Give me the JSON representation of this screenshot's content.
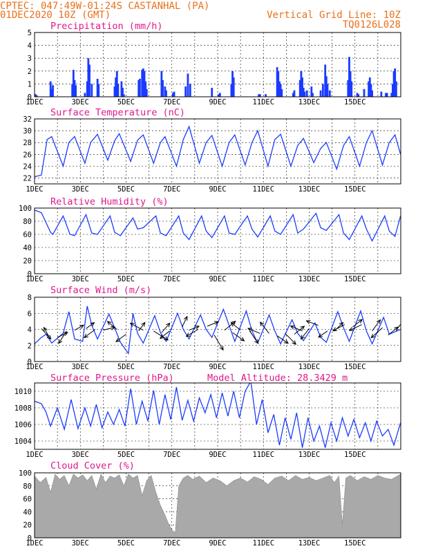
{
  "header": {
    "line1": "CPTEC:   047:49W-01:24S   CASTANHAL (PA)",
    "line2": "01DEC2020 10Z (GMT)",
    "grid_note": "Vertical Grid Line: 10Z",
    "run_code": "TQ0126L028"
  },
  "colors": {
    "header": "#e8701a",
    "title": "#e0178c",
    "series": "#1a3bff",
    "cloud": "#a9a9a9"
  },
  "chart_data": [
    {
      "type": "bar",
      "title": "Precipitation (mm/h)",
      "ylim": [
        0,
        5
      ],
      "yticks": [
        "0",
        "1",
        "2",
        "3",
        "4",
        "5"
      ],
      "xlabels": [
        "1DEC",
        "3DEC",
        "5DEC",
        "7DEC",
        "9DEC",
        "11DEC",
        "13DEC",
        "15DEC"
      ],
      "x_unit": "day index (0 = 01DEC 10Z)",
      "x": [
        0.05,
        0.1,
        0.7,
        0.75,
        0.8,
        1.65,
        1.7,
        1.75,
        1.8,
        2.2,
        2.3,
        2.35,
        2.4,
        2.5,
        2.75,
        2.8,
        3.5,
        3.55,
        3.6,
        3.65,
        3.8,
        3.85,
        3.9,
        4.55,
        4.6,
        4.7,
        4.75,
        4.8,
        4.85,
        4.9,
        5.55,
        5.6,
        5.7,
        5.75,
        6.05,
        6.1,
        6.6,
        6.7,
        6.8,
        7.75,
        8.05,
        8.1,
        8.6,
        8.65,
        8.7,
        9.8,
        9.85,
        10.1,
        10.6,
        10.65,
        10.7,
        10.75,
        10.8,
        11.3,
        11.35,
        11.6,
        11.65,
        11.7,
        11.75,
        11.8,
        11.9,
        12.1,
        12.15,
        12.5,
        12.6,
        12.7,
        12.75,
        12.8,
        12.9,
        13.7,
        13.75,
        13.8,
        13.85,
        14.1,
        14.15,
        14.4,
        14.6,
        14.65,
        14.7,
        14.75,
        15.15,
        15.35,
        15.4,
        15.6,
        15.65,
        15.7,
        15.75,
        15.8
      ],
      "values": [
        0.2,
        0.1,
        1.2,
        0.6,
        0.9,
        1.0,
        2.1,
        1.3,
        0.9,
        0.3,
        1.2,
        3.0,
        2.5,
        1.0,
        1.4,
        1.0,
        0.8,
        1.5,
        2.0,
        1.0,
        1.2,
        0.7,
        0.2,
        1.3,
        1.4,
        2.1,
        2.2,
        2.0,
        1.2,
        0.6,
        2.0,
        1.3,
        0.8,
        0.5,
        0.3,
        0.4,
        0.8,
        1.8,
        1.0,
        0.7,
        0.2,
        0.3,
        1.0,
        2.0,
        1.5,
        0.2,
        0.2,
        0.2,
        2.3,
        2.0,
        1.2,
        1.0,
        0.6,
        0.3,
        0.5,
        1.3,
        2.0,
        1.5,
        0.7,
        0.4,
        0.5,
        0.8,
        0.3,
        0.5,
        1.0,
        2.5,
        1.6,
        1.0,
        0.5,
        1.3,
        3.1,
        2.0,
        1.2,
        0.3,
        0.2,
        0.6,
        1.2,
        1.5,
        1.0,
        0.5,
        0.4,
        0.3,
        0.3,
        0.3,
        1.0,
        2.0,
        2.2,
        1.2
      ]
    },
    {
      "type": "line",
      "title": "Surface Temperature (nC)",
      "ylim": [
        21,
        32
      ],
      "yticks": [
        "22",
        "24",
        "26",
        "28",
        "30",
        "32"
      ],
      "xlabels": [
        "1DEC",
        "3DEC",
        "5DEC",
        "7DEC",
        "9DEC",
        "11DEC",
        "13DEC",
        "15DEC"
      ],
      "x": [
        0,
        0.3,
        0.55,
        0.75,
        1.25,
        1.5,
        1.75,
        2.2,
        2.45,
        2.75,
        3.2,
        3.5,
        3.7,
        4.2,
        4.5,
        4.75,
        5.2,
        5.5,
        5.7,
        6.2,
        6.5,
        6.75,
        7.2,
        7.5,
        7.75,
        8.2,
        8.5,
        8.75,
        9.2,
        9.5,
        9.75,
        10.2,
        10.5,
        10.75,
        11.2,
        11.5,
        11.75,
        12.2,
        12.5,
        12.75,
        13.2,
        13.5,
        13.75,
        14.2,
        14.5,
        14.75,
        15.2,
        15.5,
        15.75,
        15.99
      ],
      "values": [
        22.2,
        22.5,
        28.5,
        29.0,
        24.0,
        28.0,
        29.0,
        24.5,
        28.0,
        29.4,
        25.0,
        28.3,
        29.5,
        24.8,
        28.4,
        29.3,
        24.5,
        28.0,
        29.0,
        24.0,
        28.5,
        30.7,
        24.5,
        28.0,
        29.2,
        24.0,
        28.0,
        29.3,
        24.2,
        28.0,
        30.0,
        24.0,
        28.5,
        29.4,
        24.0,
        27.5,
        28.7,
        24.6,
        27.0,
        28.0,
        23.5,
        27.5,
        29.0,
        24.0,
        28.0,
        30.0,
        24.2,
        28.0,
        29.3,
        26.0
      ]
    },
    {
      "type": "line",
      "title": "Relative Humidity (%)",
      "ylim": [
        0,
        100
      ],
      "yticks": [
        "0",
        "20",
        "40",
        "60",
        "80",
        "100"
      ],
      "xlabels": [
        "1DEC",
        "3DEC",
        "5DEC",
        "7DEC",
        "9DEC",
        "11DEC",
        "13DEC",
        "15DEC"
      ],
      "x": [
        0,
        0.3,
        0.7,
        0.8,
        1.25,
        1.55,
        1.75,
        2.25,
        2.5,
        2.75,
        3.3,
        3.5,
        3.75,
        4.3,
        4.5,
        4.75,
        5.3,
        5.5,
        5.75,
        6.3,
        6.5,
        6.75,
        7.3,
        7.5,
        7.75,
        8.3,
        8.5,
        8.75,
        9.3,
        9.5,
        9.75,
        10.3,
        10.5,
        10.75,
        11.3,
        11.5,
        11.75,
        12.3,
        12.5,
        12.75,
        13.3,
        13.5,
        13.75,
        14.3,
        14.5,
        14.75,
        15.3,
        15.5,
        15.75,
        15.99
      ],
      "values": [
        97,
        93,
        63,
        60,
        88,
        60,
        58,
        90,
        62,
        60,
        88,
        63,
        58,
        85,
        68,
        70,
        88,
        62,
        58,
        88,
        62,
        52,
        88,
        65,
        55,
        88,
        62,
        60,
        88,
        68,
        56,
        88,
        65,
        60,
        90,
        62,
        68,
        92,
        70,
        66,
        90,
        62,
        52,
        88,
        68,
        50,
        88,
        65,
        57,
        88
      ]
    },
    {
      "type": "line",
      "title": "Surface Wind (m/s)",
      "ylim": [
        0,
        8
      ],
      "yticks": [
        "0",
        "2",
        "4",
        "6",
        "8"
      ],
      "xlabels": [
        "1DEC",
        "3DEC",
        "5DEC",
        "7DEC",
        "9DEC",
        "11DEC",
        "13DEC",
        "15DEC"
      ],
      "x": [
        0,
        0.3,
        0.5,
        0.75,
        1.25,
        1.5,
        1.75,
        2.1,
        2.3,
        2.5,
        2.75,
        3.25,
        3.5,
        3.75,
        4.1,
        4.3,
        4.5,
        4.75,
        5.25,
        5.5,
        5.75,
        6.25,
        6.5,
        6.75,
        7.25,
        7.5,
        7.75,
        8.25,
        8.5,
        8.75,
        9.25,
        9.5,
        9.75,
        10.25,
        10.5,
        10.75,
        11.25,
        11.5,
        11.75,
        12.25,
        12.5,
        12.75,
        13.25,
        13.5,
        13.75,
        14.25,
        14.5,
        14.75,
        15.25,
        15.5,
        15.99
      ],
      "values": [
        2.2,
        3.0,
        3.4,
        2.3,
        3.5,
        6.2,
        2.8,
        2.5,
        6.9,
        4.5,
        2.8,
        5.9,
        4.2,
        2.4,
        1.0,
        6.0,
        3.5,
        2.3,
        5.7,
        3.6,
        2.5,
        6.0,
        4.0,
        2.8,
        5.8,
        4.0,
        3.0,
        6.5,
        4.5,
        2.5,
        6.3,
        3.8,
        2.3,
        5.8,
        3.8,
        2.2,
        5.2,
        3.5,
        2.6,
        4.8,
        3.0,
        2.4,
        6.2,
        4.2,
        2.5,
        6.3,
        3.8,
        2.2,
        5.5,
        3.4,
        4.0
      ],
      "wind_vectors": {
        "x": [
          0.3,
          0.65,
          1.0,
          1.4,
          1.75,
          2.25,
          2.65,
          3.0,
          3.6,
          4.0,
          4.55,
          4.75,
          5.2,
          5.55,
          5.9,
          6.45,
          6.75,
          7.15,
          7.55,
          7.85,
          8.3,
          8.65,
          9.0,
          9.4,
          9.85,
          10.25,
          10.6,
          10.95,
          11.35,
          11.7,
          12.0,
          12.4,
          12.8,
          13.1,
          13.55,
          13.9,
          14.3,
          14.75,
          15.2,
          15.45,
          15.8
        ],
        "y": [
          4.1,
          3.0,
          3.0,
          3.8,
          3.9,
          4.1,
          4.0,
          3.9,
          4.0,
          3.4,
          3.8,
          3.9,
          3.8,
          3.6,
          3.8,
          4.3,
          3.9,
          4.0,
          4.4,
          3.3,
          3.9,
          3.6,
          3.9,
          3.8,
          3.5,
          3.5,
          3.2,
          3.5,
          3.4,
          3.8,
          4.1,
          4.5,
          3.8,
          3.8,
          4.6,
          4.3,
          4.6,
          3.8,
          4.2,
          3.3,
          3.9
        ],
        "u": [
          0.38,
          -0.22,
          0.41,
          -0.32,
          0.36,
          0.33,
          -0.44,
          0.47,
          -0.38,
          -0.4,
          0.25,
          -0.52,
          0.58,
          0.33,
          -0.38,
          0.2,
          0.4,
          -0.48,
          0.44,
          0.36,
          0.44,
          0.47,
          -0.38,
          0.34,
          -0.48,
          -0.36,
          0.44,
          0.43,
          0.4,
          -0.47,
          -0.33,
          -0.48,
          -0.36,
          0.35,
          -0.47,
          0.38,
          -0.5,
          0.33,
          -0.45,
          0.4,
          0.33
        ],
        "v": [
          -0.42,
          0.4,
          0.2,
          -0.5,
          0.2,
          0.24,
          -0.33,
          0.12,
          0.32,
          -0.3,
          0.34,
          0.28,
          -0.36,
          0.38,
          -0.3,
          0.42,
          0.16,
          -0.28,
          0.18,
          -0.6,
          0.36,
          -0.33,
          0.3,
          -0.5,
          0.2,
          0.45,
          -0.3,
          -0.44,
          0.32,
          0.2,
          -0.42,
          0.18,
          -0.25,
          0.34,
          -0.25,
          0.3,
          -0.24,
          0.45,
          -0.4,
          0.32,
          0.44
        ]
      }
    },
    {
      "type": "line",
      "title": "Surface Pressure (hPa)",
      "annotation": "Model Altitude: 28.3429 m",
      "ylim": [
        1003,
        1011
      ],
      "yticks": [
        "1004",
        "1006",
        "1008",
        "1010"
      ],
      "xlabels": [
        "1DEC",
        "3DEC",
        "5DEC",
        "7DEC",
        "9DEC",
        "11DEC",
        "13DEC",
        "15DEC"
      ],
      "x": [
        0,
        0.3,
        0.5,
        0.7,
        1.0,
        1.3,
        1.6,
        1.9,
        2.2,
        2.45,
        2.7,
        2.95,
        3.2,
        3.45,
        3.7,
        3.95,
        4.2,
        4.45,
        4.7,
        4.95,
        5.2,
        5.45,
        5.7,
        5.95,
        6.2,
        6.45,
        6.7,
        6.95,
        7.2,
        7.45,
        7.7,
        7.95,
        8.2,
        8.45,
        8.7,
        8.95,
        9.2,
        9.45,
        9.7,
        9.95,
        10.2,
        10.45,
        10.7,
        10.95,
        11.2,
        11.45,
        11.7,
        11.95,
        12.2,
        12.45,
        12.7,
        12.95,
        13.2,
        13.45,
        13.7,
        13.95,
        14.2,
        14.45,
        14.7,
        14.95,
        15.2,
        15.45,
        15.7,
        15.99
      ],
      "values": [
        1008.8,
        1008.5,
        1007.5,
        1005.8,
        1008.0,
        1005.4,
        1009.0,
        1005.5,
        1008.0,
        1005.8,
        1008.4,
        1005.6,
        1007.5,
        1006.0,
        1007.8,
        1005.8,
        1010.3,
        1006.0,
        1008.8,
        1006.4,
        1010.1,
        1006.0,
        1009.6,
        1006.6,
        1010.5,
        1006.5,
        1008.9,
        1006.4,
        1009.2,
        1007.4,
        1009.6,
        1006.8,
        1009.8,
        1007.0,
        1010.0,
        1006.8,
        1010.0,
        1011.2,
        1006.0,
        1009.0,
        1005.0,
        1007.2,
        1003.5,
        1006.8,
        1004.2,
        1007.4,
        1003.2,
        1006.8,
        1004.0,
        1005.8,
        1003.2,
        1006.2,
        1004.0,
        1006.8,
        1004.6,
        1006.6,
        1004.4,
        1006.2,
        1004.0,
        1006.4,
        1004.6,
        1005.4,
        1003.5,
        1006.2
      ]
    },
    {
      "type": "area",
      "title": "Cloud Cover (%)",
      "ylim": [
        0,
        100
      ],
      "yticks": [
        "0",
        "20",
        "40",
        "60",
        "80",
        "100"
      ],
      "xlabels": [
        "1DEC",
        "3DEC",
        "5DEC",
        "7DEC",
        "9DEC",
        "11DEC",
        "13DEC",
        "15DEC"
      ],
      "x": [
        0,
        0.25,
        0.5,
        0.7,
        0.9,
        1.1,
        1.3,
        1.5,
        1.7,
        1.9,
        2.1,
        2.3,
        2.5,
        2.7,
        2.9,
        3.1,
        3.3,
        3.5,
        3.7,
        3.9,
        4.1,
        4.3,
        4.5,
        4.7,
        4.9,
        5.1,
        5.3,
        5.5,
        5.7,
        5.85,
        6.0,
        6.15,
        6.3,
        6.5,
        6.7,
        6.9,
        7.2,
        7.5,
        7.8,
        8.1,
        8.4,
        8.7,
        9.0,
        9.3,
        9.6,
        9.9,
        10.2,
        10.5,
        10.8,
        11.1,
        11.4,
        11.7,
        12.0,
        12.3,
        12.6,
        12.9,
        13.1,
        13.3,
        13.45,
        13.6,
        13.8,
        14.1,
        14.4,
        14.7,
        15.0,
        15.3,
        15.6,
        15.99
      ],
      "values": [
        95,
        85,
        93,
        70,
        98,
        90,
        96,
        80,
        98,
        92,
        97,
        88,
        96,
        75,
        98,
        85,
        95,
        92,
        97,
        80,
        98,
        92,
        96,
        65,
        88,
        96,
        70,
        50,
        35,
        22,
        12,
        8,
        80,
        92,
        96,
        90,
        95,
        85,
        92,
        88,
        80,
        88,
        92,
        86,
        94,
        90,
        82,
        92,
        95,
        88,
        96,
        90,
        93,
        88,
        92,
        96,
        85,
        95,
        20,
        92,
        96,
        88,
        94,
        90,
        96,
        92,
        90,
        98
      ]
    }
  ]
}
